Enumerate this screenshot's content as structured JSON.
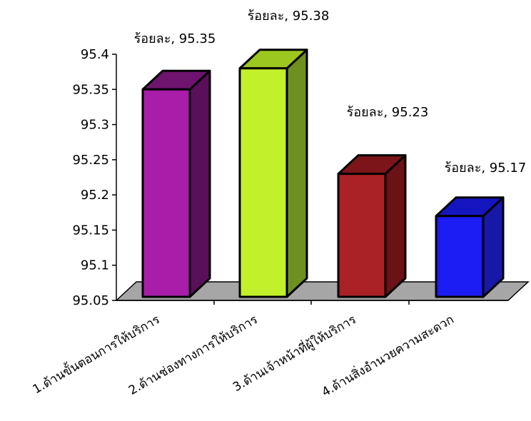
{
  "chart_data": {
    "type": "bar",
    "title": "",
    "xlabel": "",
    "ylabel": "",
    "categories": [
      "1.ด้านขั้นตอนการให้บริการ",
      "2.ด้านช่องทางการให้บริการ",
      "3.ด้านเจ้าหน้าที่ผู้ให้บริการ",
      "4.ด้านสิ่งอำนวยความสะดวก"
    ],
    "values": [
      95.35,
      95.38,
      95.23,
      95.17
    ],
    "data_labels": [
      "ร้อยละ, 95.35",
      "ร้อยละ, 95.38",
      "ร้อยละ, 95.23",
      "ร้อยละ, 95.17"
    ],
    "ylim": [
      95.05,
      95.4
    ],
    "yticks": [
      "95.05",
      "95.1",
      "95.15",
      "95.2",
      "95.25",
      "95.3",
      "95.35",
      "95.4"
    ],
    "grid": false,
    "legend": "none",
    "colors": [
      {
        "front": "#a81ea8",
        "top": "#6e146e",
        "side": "#5a0f5a"
      },
      {
        "front": "#c2f02a",
        "top": "#9cc71f",
        "side": "#6e9020"
      },
      {
        "front": "#aa2126",
        "top": "#7c1519",
        "side": "#6a1216"
      },
      {
        "front": "#1c1cf5",
        "top": "#1515c0",
        "side": "#1717a8"
      }
    ],
    "floor_color": "#a6a6a6"
  }
}
